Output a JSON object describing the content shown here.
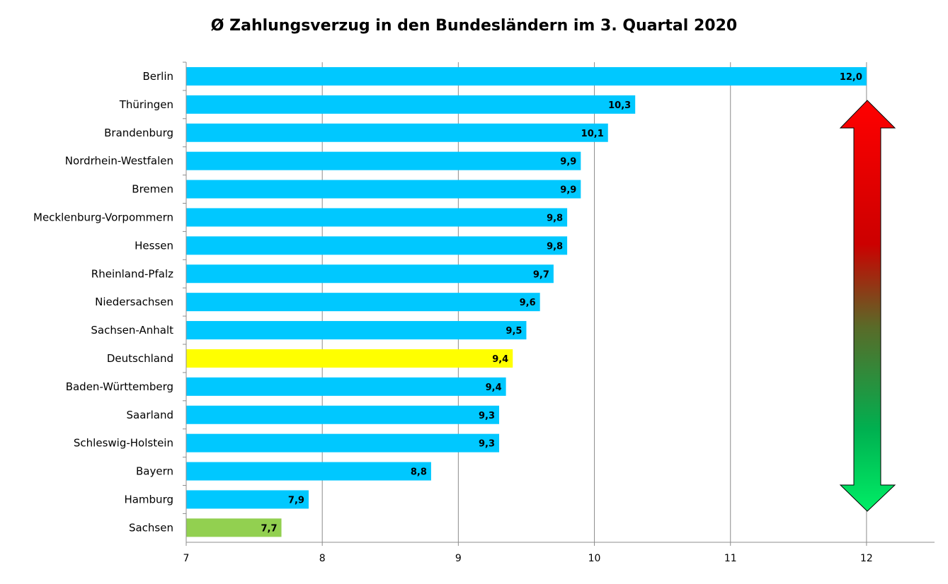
{
  "chart_data": {
    "type": "bar",
    "orientation": "horizontal",
    "title": "Ø  Zahlungsverzug in den Bundesländern im 3. Quartal 2020",
    "categories": [
      "Berlin",
      "Thüringen",
      "Brandenburg",
      "Nordrhein-Westfalen",
      "Bremen",
      "Mecklenburg-Vorpommern",
      "Hessen",
      "Rheinland-Pfalz",
      "Niedersachsen",
      "Sachsen-Anhalt",
      "Deutschland",
      "Baden-Württemberg",
      "Saarland",
      "Schleswig-Holstein",
      "Bayern",
      "Hamburg",
      "Sachsen"
    ],
    "values": [
      12.0,
      10.3,
      10.1,
      9.9,
      9.9,
      9.8,
      9.8,
      9.7,
      9.6,
      9.5,
      9.4,
      9.35,
      9.3,
      9.3,
      8.8,
      7.9,
      7.7
    ],
    "data_labels": [
      "12,0",
      "10,3",
      "10,1",
      "9,9",
      "9,9",
      "9,8",
      "9,8",
      "9,7",
      "9,6",
      "9,5",
      "9,4",
      "9,4",
      "9,3",
      "9,3",
      "8,8",
      "7,9",
      "7,7"
    ],
    "bar_colors": [
      "#00c8ff",
      "#00c8ff",
      "#00c8ff",
      "#00c8ff",
      "#00c8ff",
      "#00c8ff",
      "#00c8ff",
      "#00c8ff",
      "#00c8ff",
      "#00c8ff",
      "#ffff00",
      "#00c8ff",
      "#00c8ff",
      "#00c8ff",
      "#00c8ff",
      "#00c8ff",
      "#92d050"
    ],
    "xlim": [
      7,
      12.5
    ],
    "xticks": [
      7,
      8,
      9,
      10,
      11,
      12
    ],
    "xlabel": "",
    "ylabel": "",
    "grid": "vertical",
    "legend": "none",
    "arrow": {
      "from_color": "#ff0000",
      "mid_color": "#c00000",
      "to_color": "#00e060",
      "x_value": 12
    }
  }
}
